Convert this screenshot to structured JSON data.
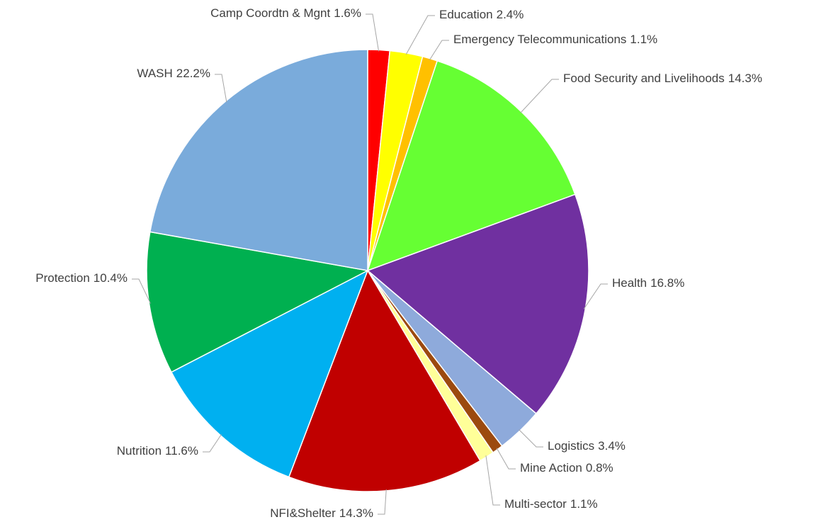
{
  "chart_data": {
    "type": "pie",
    "categories": [
      "Camp Coordtn & Mgnt",
      "Education",
      "Emergency Telecommunications",
      "Food Security and Livelihoods",
      "Health",
      "Logistics",
      "Mine Action",
      "Multi-sector",
      "NFI&Shelter",
      "Nutrition",
      "Protection",
      "WASH"
    ],
    "values": [
      1.6,
      2.4,
      1.1,
      14.3,
      16.8,
      3.4,
      0.8,
      1.1,
      14.3,
      11.6,
      10.4,
      22.2
    ],
    "value_labels": [
      "1.6%",
      "2.4%",
      "1.1%",
      "14.3%",
      "16.8%",
      "3.4%",
      "0.8%",
      "1.1%",
      "14.3%",
      "11.6%",
      "10.4%",
      "22.2%"
    ],
    "colors": [
      "#ff0000",
      "#ffff00",
      "#ffc000",
      "#66ff33",
      "#7030a0",
      "#8eaadb",
      "#9c4a0f",
      "#ffff99",
      "#c00000",
      "#00b0f0",
      "#00b050",
      "#7aabdb"
    ]
  }
}
